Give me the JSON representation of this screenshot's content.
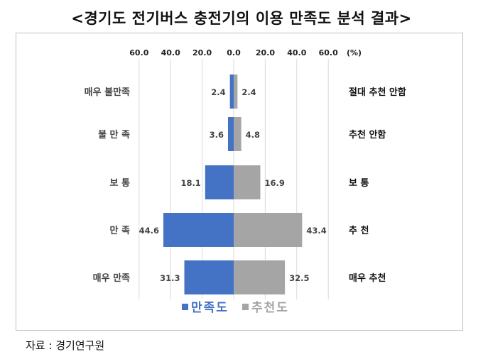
{
  "title": "<경기도 전기버스 충전기의 이용 만족도 분석 결과>",
  "source": "자료 : 경기연구원",
  "chart_data": {
    "type": "bar",
    "orientation": "horizontal-diverging",
    "x_tick_labels": [
      "60.0",
      "40.0",
      "20.0",
      "0.0",
      "20.0",
      "40.0",
      "60.0"
    ],
    "x_unit": "(%)",
    "xlim": [
      -60,
      60
    ],
    "grid": true,
    "legend_position": "bottom",
    "left_categories": [
      "매우 불만족",
      "불 만 족",
      "보 통",
      "만 족",
      "매우 만족"
    ],
    "right_categories": [
      "절대 추천 안함",
      "추천 안함",
      "보 통",
      "추 천",
      "매우 추천"
    ],
    "series": [
      {
        "name": "만족도",
        "side": "left",
        "color": "#4472c4",
        "values": [
          2.4,
          3.6,
          18.1,
          44.6,
          31.3
        ]
      },
      {
        "name": "추천도",
        "side": "right",
        "color": "#a5a5a5",
        "values": [
          2.4,
          4.8,
          16.9,
          43.4,
          32.5
        ]
      }
    ]
  }
}
